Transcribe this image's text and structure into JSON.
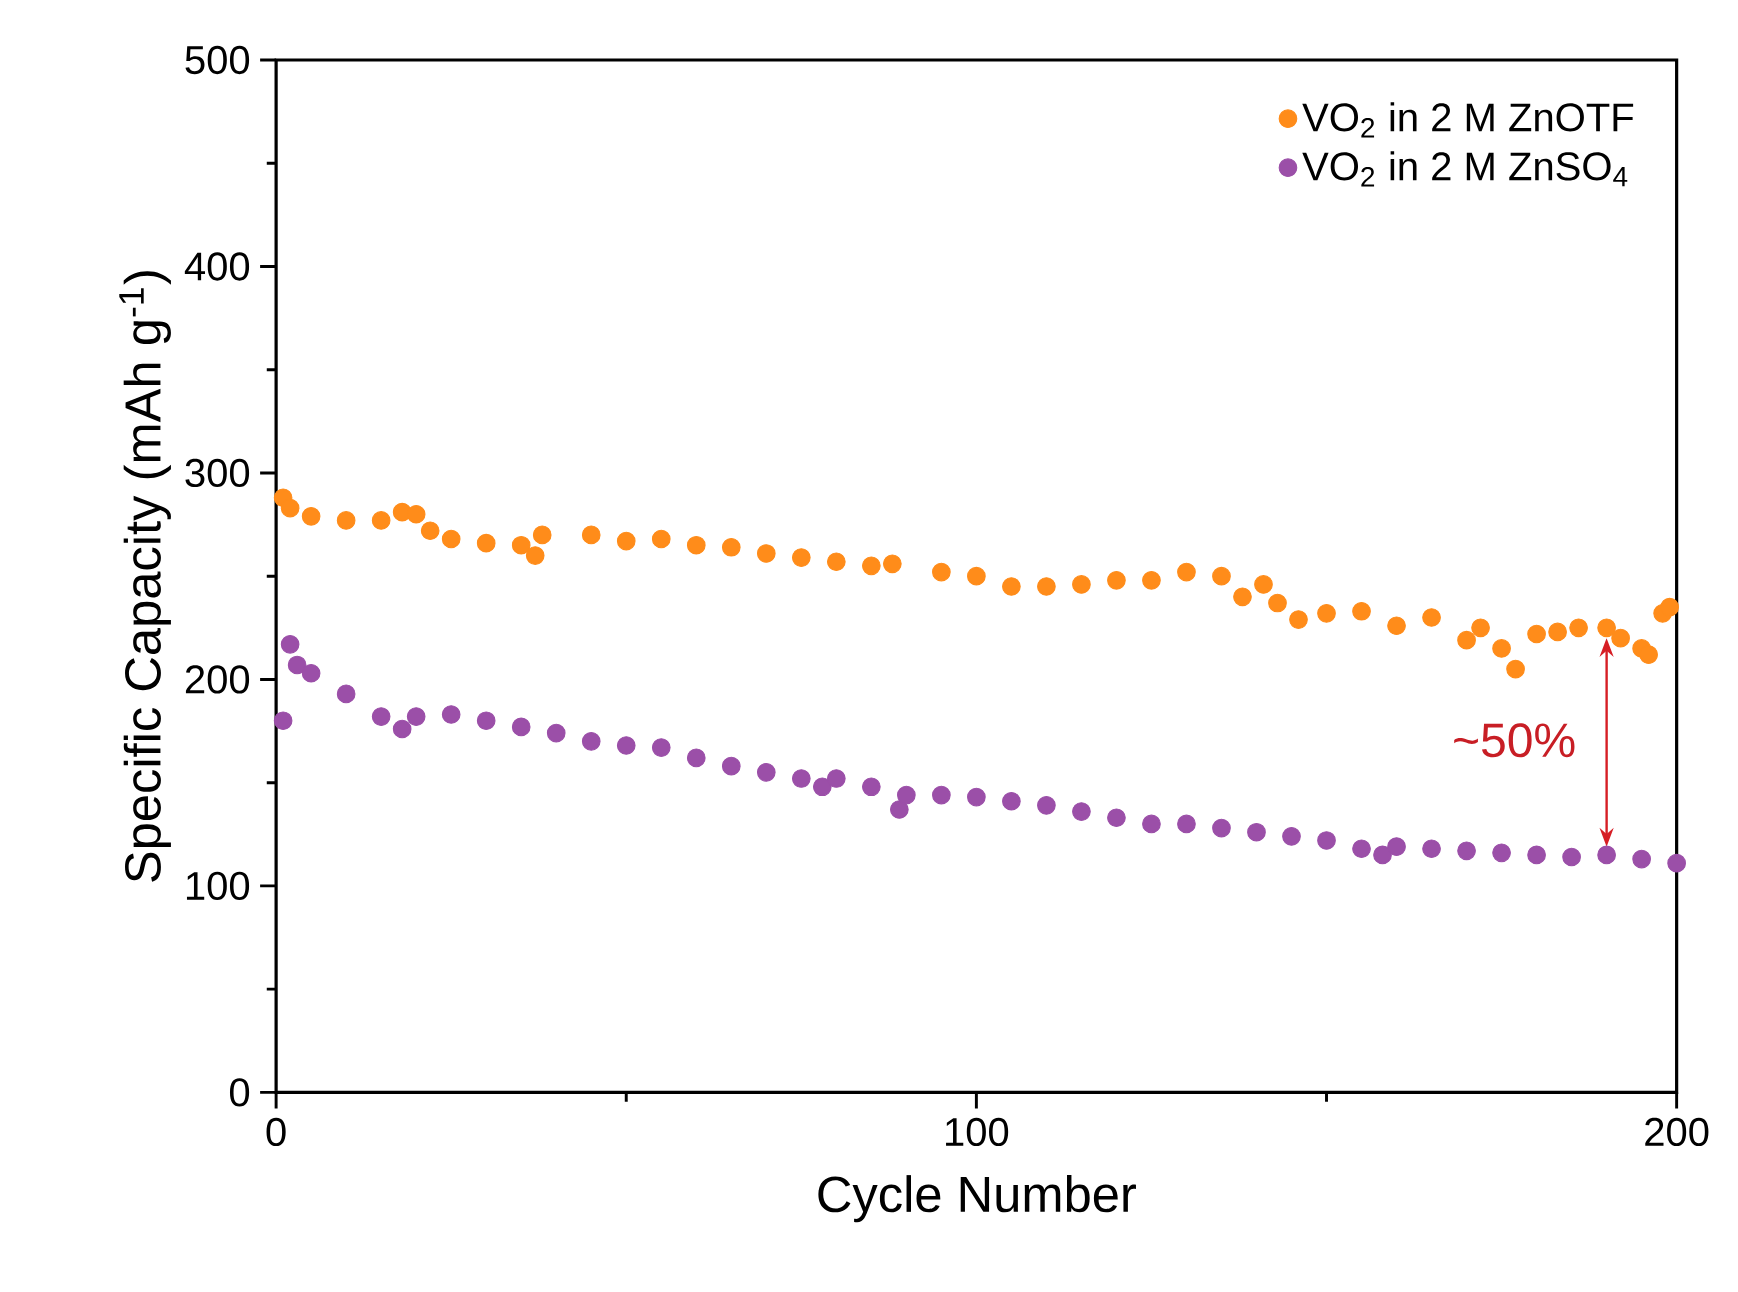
{
  "chart_data": {
    "type": "scatter",
    "xlabel": "Cycle Number",
    "ylabel": "Specific Capacity (mAh g$^{-1}$)",
    "xlim": [
      0,
      200
    ],
    "ylim": [
      0,
      500
    ],
    "xticks": [
      0,
      100,
      200
    ],
    "yticks": [
      0,
      100,
      200,
      300,
      400,
      500
    ],
    "legend": "top right",
    "marker": "circle",
    "series": [
      {
        "name": "VO$_{2}$ in 2 M ZnOTF",
        "color": "#ff8c1a",
        "x": [
          1,
          2,
          5,
          10,
          15,
          18,
          20,
          22,
          25,
          30,
          35,
          37,
          38,
          45,
          50,
          55,
          60,
          65,
          70,
          75,
          80,
          85,
          88,
          95,
          100,
          105,
          110,
          115,
          120,
          125,
          130,
          135,
          138,
          141,
          143,
          146,
          150,
          155,
          160,
          165,
          170,
          172,
          175,
          177,
          180,
          183,
          186,
          190,
          192,
          195,
          196,
          198,
          199
        ],
        "values": [
          288,
          283,
          279,
          277,
          277,
          281,
          280,
          272,
          268,
          266,
          265,
          260,
          270,
          270,
          267,
          268,
          265,
          264,
          261,
          259,
          257,
          255,
          256,
          252,
          250,
          245,
          245,
          246,
          248,
          248,
          252,
          250,
          240,
          246,
          237,
          229,
          232,
          233,
          226,
          230,
          219,
          225,
          215,
          205,
          222,
          223,
          225,
          225,
          220,
          215,
          212,
          232,
          235
        ]
      },
      {
        "name": "VO$_{2}$ in 2 M ZnSO$_{4}$",
        "color": "#9b4fa8",
        "x": [
          1,
          2,
          3,
          5,
          10,
          15,
          18,
          20,
          25,
          30,
          35,
          40,
          45,
          50,
          55,
          60,
          65,
          70,
          75,
          78,
          80,
          85,
          89,
          90,
          95,
          100,
          105,
          110,
          115,
          120,
          125,
          130,
          135,
          140,
          145,
          150,
          155,
          158,
          160,
          165,
          170,
          175,
          180,
          185,
          190,
          195,
          200
        ],
        "values": [
          180,
          217,
          207,
          203,
          193,
          182,
          176,
          182,
          183,
          180,
          177,
          174,
          170,
          168,
          167,
          162,
          158,
          155,
          152,
          148,
          152,
          148,
          137,
          144,
          144,
          143,
          141,
          139,
          136,
          133,
          130,
          130,
          128,
          126,
          124,
          122,
          118,
          115,
          119,
          118,
          117,
          116,
          115,
          114,
          115,
          113,
          111
        ]
      }
    ],
    "annotations": [
      "~50%"
    ]
  }
}
